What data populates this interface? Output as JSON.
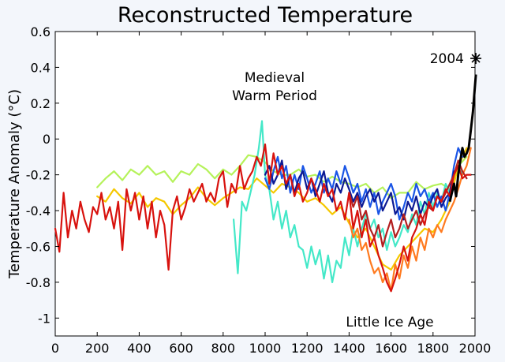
{
  "chart_data": {
    "type": "line",
    "title": "Reconstructed Temperature",
    "xlabel": "",
    "ylabel": "Temperature Anomaly (°C)",
    "xlim": [
      0,
      2000
    ],
    "ylim": [
      -1.1,
      0.6
    ],
    "x_ticks": [
      0,
      200,
      400,
      600,
      800,
      1000,
      1200,
      1400,
      1600,
      1800,
      2000
    ],
    "y_ticks": [
      0.6,
      0.4,
      0.2,
      0,
      -0.2,
      -0.4,
      -0.6,
      -0.8,
      -1
    ],
    "y_tick_labels": [
      "0.6",
      "0.4",
      "0.2",
      "0",
      "-0.2",
      "-0.4",
      "-0.6",
      "-0.8",
      "-1"
    ],
    "grid": false,
    "annotations": {
      "medieval_line1": "Medieval",
      "medieval_line2": "Warm Period",
      "little_ice_age": "Little Ice Age",
      "marker_label": "2004"
    },
    "marker": {
      "x": 2004,
      "y": 0.45
    },
    "series": [
      {
        "color": "#b5f25a",
        "x": [
          200,
          240,
          280,
          320,
          360,
          400,
          440,
          480,
          520,
          560,
          600,
          640,
          680,
          720,
          760,
          800,
          840,
          880,
          920,
          960,
          1000,
          1040,
          1080,
          1120,
          1160,
          1200,
          1240,
          1280,
          1320,
          1360,
          1400,
          1440,
          1480,
          1520,
          1560,
          1600,
          1640,
          1680,
          1720,
          1760,
          1800,
          1840,
          1880,
          1920,
          1960
        ],
        "y": [
          -0.27,
          -0.22,
          -0.18,
          -0.23,
          -0.17,
          -0.2,
          -0.15,
          -0.2,
          -0.18,
          -0.24,
          -0.18,
          -0.2,
          -0.14,
          -0.17,
          -0.22,
          -0.17,
          -0.2,
          -0.15,
          -0.09,
          -0.1,
          -0.13,
          -0.18,
          -0.2,
          -0.2,
          -0.17,
          -0.21,
          -0.2,
          -0.24,
          -0.21,
          -0.24,
          -0.25,
          -0.27,
          -0.25,
          -0.3,
          -0.27,
          -0.33,
          -0.3,
          -0.3,
          -0.24,
          -0.28,
          -0.26,
          -0.25,
          -0.28,
          -0.15,
          -0.1
        ]
      },
      {
        "color": "#f5c800",
        "x": [
          200,
          240,
          280,
          320,
          360,
          400,
          440,
          480,
          520,
          560,
          600,
          640,
          680,
          720,
          760,
          800,
          840,
          880,
          920,
          960,
          1000,
          1040,
          1080,
          1120,
          1160,
          1200,
          1240,
          1280,
          1320,
          1360,
          1400,
          1440,
          1480,
          1520,
          1560,
          1600,
          1640,
          1680,
          1720,
          1760,
          1800,
          1840,
          1880,
          1920,
          1960
        ],
        "y": [
          -0.32,
          -0.35,
          -0.28,
          -0.33,
          -0.36,
          -0.3,
          -0.38,
          -0.33,
          -0.35,
          -0.42,
          -0.37,
          -0.33,
          -0.27,
          -0.33,
          -0.37,
          -0.33,
          -0.3,
          -0.27,
          -0.28,
          -0.22,
          -0.26,
          -0.3,
          -0.25,
          -0.27,
          -0.3,
          -0.35,
          -0.33,
          -0.37,
          -0.42,
          -0.38,
          -0.47,
          -0.55,
          -0.5,
          -0.6,
          -0.7,
          -0.73,
          -0.65,
          -0.6,
          -0.55,
          -0.5,
          -0.52,
          -0.45,
          -0.35,
          -0.15,
          -0.05
        ]
      },
      {
        "color": "#44e8c8",
        "x": [
          850,
          870,
          890,
          910,
          930,
          950,
          970,
          985,
          1000,
          1020,
          1040,
          1060,
          1080,
          1100,
          1120,
          1140,
          1160,
          1180,
          1200,
          1220,
          1240,
          1260,
          1280,
          1300,
          1320,
          1340,
          1360,
          1380,
          1400,
          1420,
          1440,
          1460,
          1480,
          1500,
          1520,
          1540,
          1560,
          1580,
          1600,
          1620,
          1640,
          1660,
          1680,
          1700,
          1720,
          1740,
          1760,
          1780,
          1800,
          1820,
          1840,
          1860,
          1880,
          1900,
          1920,
          1940
        ],
        "y": [
          -0.45,
          -0.75,
          -0.35,
          -0.4,
          -0.3,
          -0.2,
          -0.05,
          0.1,
          -0.2,
          -0.28,
          -0.45,
          -0.35,
          -0.5,
          -0.4,
          -0.55,
          -0.48,
          -0.6,
          -0.62,
          -0.72,
          -0.6,
          -0.7,
          -0.62,
          -0.78,
          -0.65,
          -0.8,
          -0.68,
          -0.72,
          -0.55,
          -0.65,
          -0.5,
          -0.6,
          -0.5,
          -0.42,
          -0.5,
          -0.45,
          -0.55,
          -0.5,
          -0.62,
          -0.52,
          -0.6,
          -0.55,
          -0.48,
          -0.52,
          -0.42,
          -0.48,
          -0.35,
          -0.42,
          -0.3,
          -0.38,
          -0.3,
          -0.35,
          -0.25,
          -0.3,
          -0.2,
          -0.15,
          -0.2
        ]
      },
      {
        "color": "#1a55e6",
        "x": [
          1000,
          1020,
          1040,
          1060,
          1080,
          1100,
          1120,
          1140,
          1160,
          1180,
          1200,
          1220,
          1240,
          1260,
          1280,
          1300,
          1320,
          1340,
          1360,
          1380,
          1400,
          1420,
          1440,
          1460,
          1480,
          1500,
          1520,
          1540,
          1560,
          1580,
          1600,
          1620,
          1640,
          1660,
          1680,
          1700,
          1720,
          1740,
          1760,
          1780,
          1800,
          1820,
          1840,
          1860,
          1880,
          1900,
          1920,
          1940
        ],
        "y": [
          -0.22,
          -0.28,
          -0.18,
          -0.1,
          -0.22,
          -0.15,
          -0.3,
          -0.2,
          -0.28,
          -0.15,
          -0.22,
          -0.3,
          -0.25,
          -0.18,
          -0.3,
          -0.22,
          -0.28,
          -0.18,
          -0.25,
          -0.15,
          -0.22,
          -0.3,
          -0.25,
          -0.35,
          -0.28,
          -0.38,
          -0.3,
          -0.42,
          -0.35,
          -0.3,
          -0.25,
          -0.32,
          -0.45,
          -0.38,
          -0.3,
          -0.35,
          -0.25,
          -0.32,
          -0.28,
          -0.35,
          -0.3,
          -0.38,
          -0.32,
          -0.4,
          -0.3,
          -0.15,
          -0.05,
          -0.1
        ]
      },
      {
        "color": "#0c1a94",
        "x": [
          1000,
          1020,
          1040,
          1060,
          1080,
          1100,
          1120,
          1140,
          1160,
          1180,
          1200,
          1220,
          1240,
          1260,
          1280,
          1300,
          1320,
          1340,
          1360,
          1380,
          1400,
          1420,
          1440,
          1460,
          1480,
          1500,
          1520,
          1540,
          1560,
          1580,
          1600,
          1620,
          1640,
          1660,
          1680,
          1700,
          1720,
          1740,
          1760,
          1780,
          1800,
          1820,
          1840,
          1860,
          1880,
          1900
        ],
        "y": [
          -0.2,
          -0.15,
          -0.25,
          -0.2,
          -0.12,
          -0.28,
          -0.2,
          -0.3,
          -0.22,
          -0.18,
          -0.28,
          -0.22,
          -0.32,
          -0.25,
          -0.18,
          -0.3,
          -0.35,
          -0.25,
          -0.3,
          -0.22,
          -0.28,
          -0.35,
          -0.3,
          -0.38,
          -0.32,
          -0.28,
          -0.35,
          -0.3,
          -0.4,
          -0.35,
          -0.3,
          -0.42,
          -0.38,
          -0.45,
          -0.35,
          -0.4,
          -0.32,
          -0.42,
          -0.35,
          -0.38,
          -0.32,
          -0.28,
          -0.38,
          -0.33,
          -0.3,
          -0.18
        ]
      },
      {
        "color": "#ff7a1f",
        "x": [
          1400,
          1420,
          1440,
          1460,
          1480,
          1500,
          1520,
          1540,
          1560,
          1580,
          1600,
          1620,
          1640,
          1660,
          1680,
          1700,
          1720,
          1740,
          1760,
          1780,
          1800,
          1820,
          1840,
          1860,
          1880,
          1900,
          1920,
          1940,
          1960,
          1980
        ],
        "y": [
          -0.45,
          -0.55,
          -0.5,
          -0.62,
          -0.58,
          -0.68,
          -0.75,
          -0.72,
          -0.8,
          -0.75,
          -0.85,
          -0.7,
          -0.78,
          -0.65,
          -0.72,
          -0.6,
          -0.68,
          -0.55,
          -0.62,
          -0.5,
          -0.55,
          -0.48,
          -0.52,
          -0.45,
          -0.4,
          -0.35,
          -0.28,
          -0.2,
          -0.15,
          -0.05
        ]
      },
      {
        "color": "#b31f1f",
        "x": [
          1400,
          1420,
          1440,
          1460,
          1480,
          1500,
          1520,
          1540,
          1560,
          1580,
          1600,
          1620,
          1640,
          1660,
          1680,
          1700,
          1720,
          1740,
          1760,
          1780,
          1800,
          1820,
          1840,
          1860,
          1880,
          1900,
          1920,
          1940,
          1960
        ],
        "y": [
          -0.3,
          -0.38,
          -0.32,
          -0.45,
          -0.4,
          -0.5,
          -0.55,
          -0.48,
          -0.6,
          -0.52,
          -0.45,
          -0.55,
          -0.5,
          -0.42,
          -0.5,
          -0.45,
          -0.4,
          -0.48,
          -0.42,
          -0.38,
          -0.4,
          -0.32,
          -0.35,
          -0.3,
          -0.25,
          -0.2,
          -0.12,
          -0.18,
          -0.22
        ]
      },
      {
        "color": "#d8120e",
        "x": [
          0,
          20,
          40,
          60,
          80,
          100,
          120,
          140,
          160,
          180,
          200,
          220,
          240,
          260,
          280,
          300,
          320,
          340,
          360,
          380,
          400,
          420,
          440,
          460,
          480,
          500,
          520,
          540,
          560,
          580,
          600,
          620,
          640,
          660,
          680,
          700,
          720,
          740,
          760,
          780,
          800,
          820,
          840,
          860,
          880,
          900,
          920,
          940,
          960,
          980,
          1000,
          1020,
          1040,
          1060,
          1080,
          1100,
          1120,
          1140,
          1160,
          1180,
          1200,
          1220,
          1240,
          1260,
          1280,
          1300,
          1320,
          1340,
          1360,
          1380,
          1400,
          1420,
          1440,
          1460,
          1480,
          1500,
          1520,
          1540,
          1560,
          1580,
          1600,
          1620,
          1640,
          1660,
          1680,
          1700,
          1720,
          1740,
          1760,
          1780,
          1800,
          1820,
          1840,
          1860,
          1880,
          1900,
          1920,
          1940,
          1960,
          1980
        ],
        "y": [
          -0.5,
          -0.63,
          -0.3,
          -0.55,
          -0.4,
          -0.5,
          -0.35,
          -0.45,
          -0.52,
          -0.38,
          -0.42,
          -0.3,
          -0.45,
          -0.38,
          -0.5,
          -0.35,
          -0.62,
          -0.28,
          -0.4,
          -0.3,
          -0.45,
          -0.32,
          -0.5,
          -0.35,
          -0.55,
          -0.4,
          -0.48,
          -0.73,
          -0.4,
          -0.32,
          -0.45,
          -0.38,
          -0.28,
          -0.35,
          -0.3,
          -0.25,
          -0.35,
          -0.3,
          -0.35,
          -0.22,
          -0.18,
          -0.38,
          -0.25,
          -0.3,
          -0.15,
          -0.28,
          -0.22,
          -0.18,
          -0.1,
          -0.15,
          -0.03,
          -0.25,
          -0.08,
          -0.2,
          -0.15,
          -0.25,
          -0.2,
          -0.32,
          -0.25,
          -0.35,
          -0.3,
          -0.22,
          -0.28,
          -0.35,
          -0.25,
          -0.32,
          -0.28,
          -0.4,
          -0.35,
          -0.45,
          -0.3,
          -0.5,
          -0.4,
          -0.55,
          -0.45,
          -0.6,
          -0.55,
          -0.65,
          -0.72,
          -0.8,
          -0.85,
          -0.78,
          -0.7,
          -0.6,
          -0.68,
          -0.55,
          -0.5,
          -0.42,
          -0.48,
          -0.35,
          -0.4,
          -0.32,
          -0.35,
          -0.28,
          -0.32,
          -0.2,
          -0.15,
          -0.22,
          -0.2,
          -0.2
        ]
      },
      {
        "color": "#000000",
        "x": [
          1880,
          1890,
          1900,
          1910,
          1920,
          1930,
          1940,
          1950,
          1960,
          1970,
          1980,
          1990,
          2000,
          2004
        ],
        "y": [
          -0.35,
          -0.3,
          -0.25,
          -0.32,
          -0.2,
          -0.12,
          -0.05,
          -0.1,
          -0.08,
          -0.05,
          0.05,
          0.15,
          0.3,
          0.36
        ]
      }
    ]
  }
}
